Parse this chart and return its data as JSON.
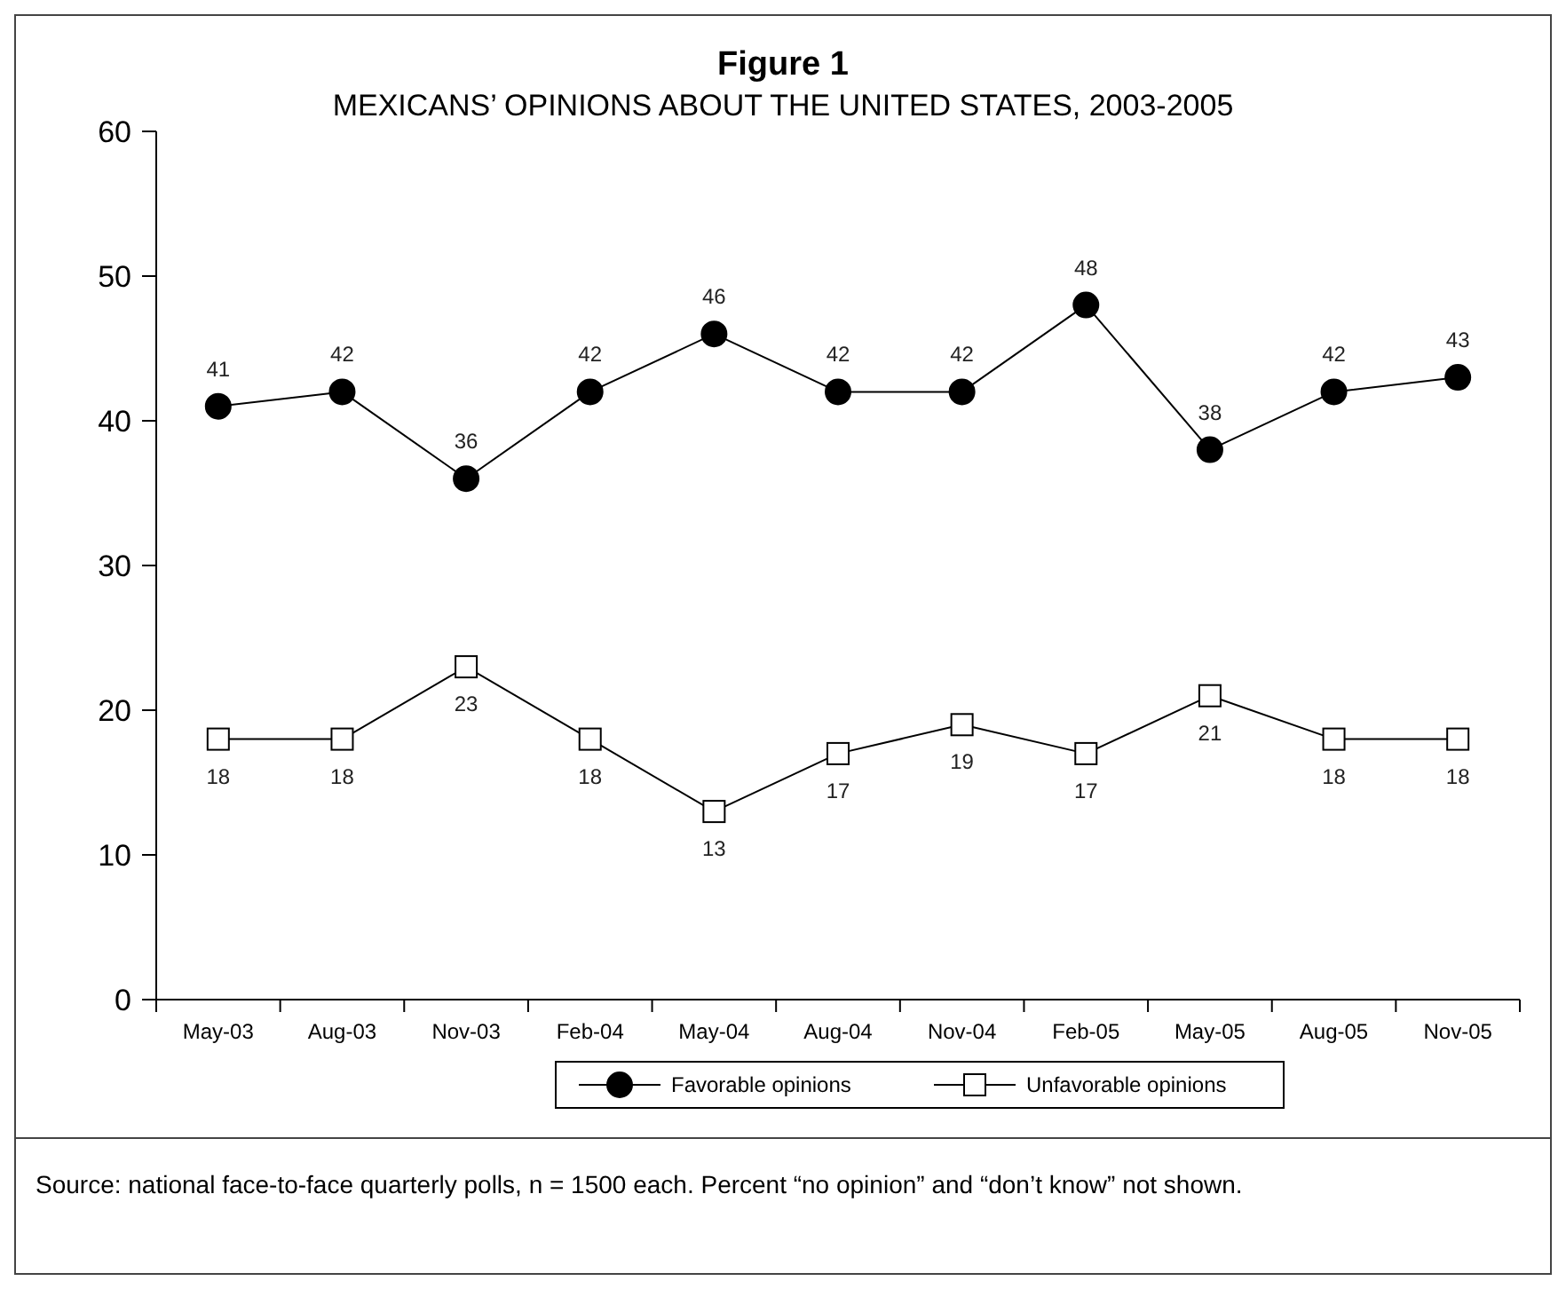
{
  "chart_data": {
    "type": "line",
    "title": "Figure 1",
    "subtitle": "MEXICANS’ OPINIONS ABOUT THE UNITED STATES, 2003-2005",
    "categories": [
      "May-03",
      "Aug-03",
      "Nov-03",
      "Feb-04",
      "May-04",
      "Aug-04",
      "Nov-04",
      "Feb-05",
      "May-05",
      "Aug-05",
      "Nov-05"
    ],
    "series": [
      {
        "name": "Favorable opinions",
        "color": "#000000",
        "marker": "circle",
        "values": [
          41,
          42,
          36,
          42,
          46,
          42,
          42,
          48,
          38,
          42,
          43
        ]
      },
      {
        "name": "Unfavorable opinions",
        "color": "#000000",
        "marker": "square",
        "values": [
          18,
          18,
          23,
          18,
          13,
          17,
          19,
          17,
          21,
          18,
          18
        ]
      }
    ],
    "ylim": [
      0,
      60
    ],
    "yticks": [
      0,
      10,
      20,
      30,
      40,
      50,
      60
    ],
    "grid": false,
    "legend": "bottom",
    "data_labels": true,
    "annotations": [
      "Source: national face-to-face quarterly polls, n = 1500 each. Percent “no opinion” and “don’t know” not shown."
    ]
  }
}
